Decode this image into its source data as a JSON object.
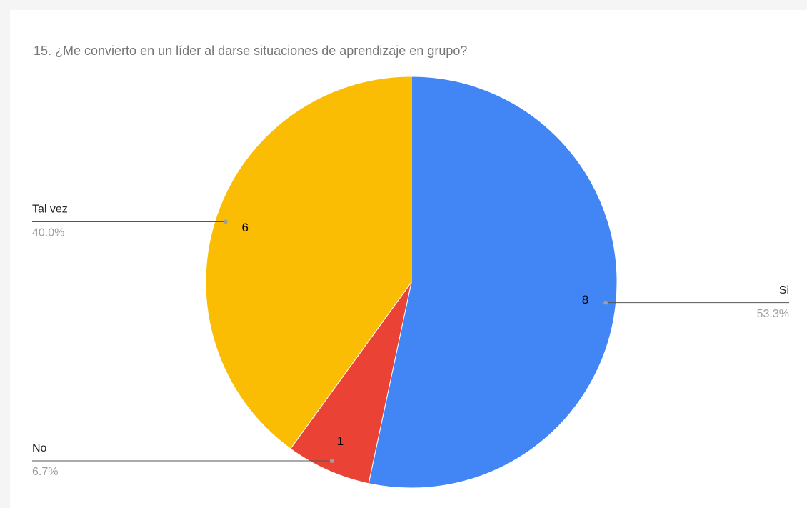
{
  "chart_data": {
    "type": "pie",
    "title": "15. ¿Me convierto en un líder al darse situaciones de aprendizaje en grupo?",
    "categories": [
      "Si",
      "No",
      "Tal vez"
    ],
    "values": [
      8,
      1,
      6
    ],
    "percent_labels": [
      "53.3%",
      "6.7%",
      "40.0%"
    ],
    "colors": [
      "#4285f4",
      "#ea4335",
      "#fbbc04"
    ]
  }
}
